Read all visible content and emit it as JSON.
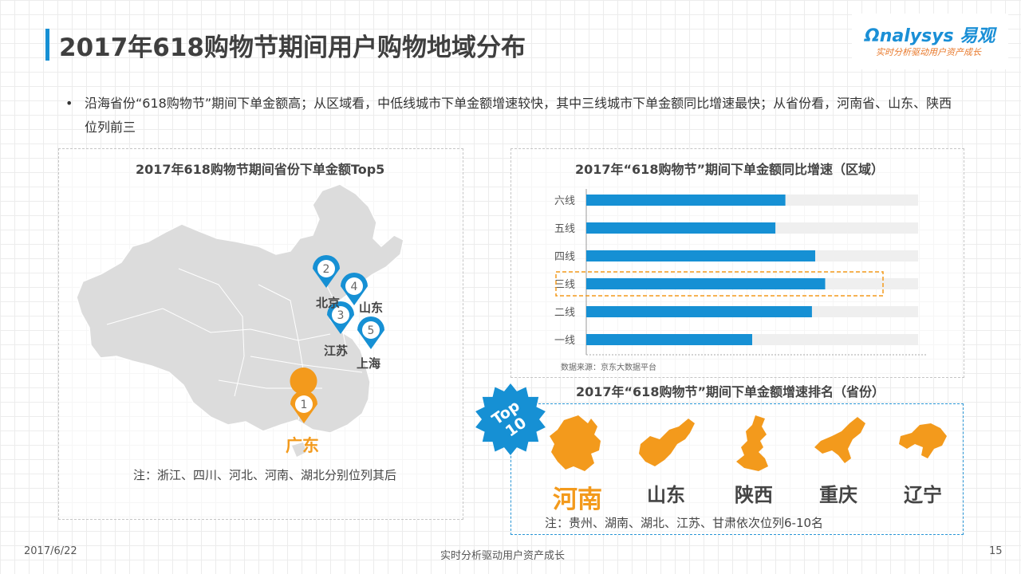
{
  "page": {
    "title": "2017年618购物节期间用户购物地域分布",
    "logo_main": "Ωnalysys 易观",
    "logo_sub": "实时分析驱动用户资产成长",
    "summary_bullet": "•",
    "summary": "沿海省份“618购物节”期间下单金额高；从区域看，中低线城市下单金额增速较快，其中三线城市下单金额同比增速最快；从省份看，河南省、山东、陕西位列前三"
  },
  "left_panel": {
    "title": "2017年618购物节期间省份下单金额Top5",
    "pins": [
      {
        "rank": "1",
        "name": "广东",
        "highlight": true,
        "color": "#f39a1c"
      },
      {
        "rank": "2",
        "name": "北京",
        "highlight": false,
        "color": "#1690d4"
      },
      {
        "rank": "3",
        "name": "江苏",
        "highlight": false,
        "color": "#1690d4"
      },
      {
        "rank": "4",
        "name": "山东",
        "highlight": false,
        "color": "#1690d4"
      },
      {
        "rank": "5",
        "name": "上海",
        "highlight": false,
        "color": "#1690d4"
      }
    ],
    "note": "注：浙江、四川、河北、河南、湖北分别位列其后"
  },
  "chart_data": {
    "type": "bar",
    "orientation": "horizontal",
    "title": "2017年“618购物节”期间下单金额同比增速（区域）",
    "categories": [
      "六线",
      "五线",
      "四线",
      "三线",
      "二线",
      "一线"
    ],
    "values": [
      0.6,
      0.57,
      0.69,
      0.72,
      0.68,
      0.5
    ],
    "value_scale": "relative (no numeric axis printed)",
    "highlight_category": "三线",
    "bar_color": "#1690d4",
    "track_color": "#efefef",
    "source": "数据来源：京东大数据平台",
    "xlabel": "",
    "ylabel": "",
    "grid": false
  },
  "top10": {
    "title": "2017年“618购物节”期间下单金额增速排名（省份）",
    "badge_line1": "Top",
    "badge_line2": "10",
    "badge_color": "#1690d4",
    "map_color": "#f39a1c",
    "provinces": [
      {
        "name": "河南",
        "highlight": true
      },
      {
        "name": "山东",
        "highlight": false
      },
      {
        "name": "陕西",
        "highlight": false
      },
      {
        "name": "重庆",
        "highlight": false
      },
      {
        "name": "辽宁",
        "highlight": false
      }
    ],
    "note": "注：贵州、湖南、湖北、江苏、甘肃依次位列6-10名"
  },
  "footer": {
    "date": "2017/6/22",
    "slogan": "实时分析驱动用户资产成长",
    "page_number": "15"
  }
}
